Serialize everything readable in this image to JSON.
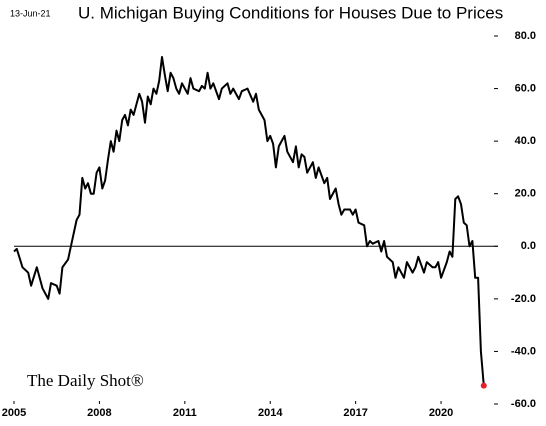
{
  "chart_data": {
    "type": "line",
    "title": "U. Michigan Buying Conditions for Houses Due to Prices",
    "date_label": "13-Jun-21",
    "watermark": "The Daily Shot®",
    "x": [
      2005.0,
      2005.1,
      2005.3,
      2005.5,
      2005.6,
      2005.8,
      2006.0,
      2006.2,
      2006.3,
      2006.5,
      2006.6,
      2006.7,
      2006.9,
      2007.0,
      2007.2,
      2007.3,
      2007.4,
      2007.5,
      2007.6,
      2007.7,
      2007.8,
      2007.9,
      2008.0,
      2008.1,
      2008.2,
      2008.3,
      2008.4,
      2008.5,
      2008.6,
      2008.7,
      2008.8,
      2008.9,
      2009.0,
      2009.1,
      2009.2,
      2009.4,
      2009.5,
      2009.6,
      2009.7,
      2009.8,
      2009.9,
      2010.0,
      2010.1,
      2010.2,
      2010.3,
      2010.4,
      2010.5,
      2010.6,
      2010.7,
      2010.8,
      2010.9,
      2011.1,
      2011.2,
      2011.3,
      2011.5,
      2011.6,
      2011.7,
      2011.8,
      2011.9,
      2012.0,
      2012.2,
      2012.3,
      2012.5,
      2012.6,
      2012.7,
      2012.9,
      2013.0,
      2013.2,
      2013.4,
      2013.5,
      2013.6,
      2013.8,
      2013.9,
      2014.0,
      2014.1,
      2014.2,
      2014.3,
      2014.4,
      2014.5,
      2014.6,
      2014.8,
      2014.9,
      2015.0,
      2015.1,
      2015.2,
      2015.3,
      2015.5,
      2015.6,
      2015.7,
      2015.9,
      2016.0,
      2016.1,
      2016.3,
      2016.4,
      2016.5,
      2016.6,
      2016.8,
      2016.9,
      2017.0,
      2017.1,
      2017.3,
      2017.4,
      2017.5,
      2017.6,
      2017.8,
      2017.9,
      2018.0,
      2018.1,
      2018.3,
      2018.4,
      2018.5,
      2018.7,
      2018.8,
      2019.0,
      2019.1,
      2019.2,
      2019.4,
      2019.5,
      2019.7,
      2019.8,
      2019.9,
      2020.0,
      2020.2,
      2020.3,
      2020.4,
      2020.5,
      2020.6,
      2020.7,
      2020.8,
      2020.9,
      2021.0,
      2021.1,
      2021.2,
      2021.3,
      2021.4,
      2021.5
    ],
    "series": [
      {
        "color": "#000000",
        "values": [
          -2,
          -1,
          -8,
          -10,
          -15,
          -8,
          -16,
          -20,
          -14,
          -15,
          -18,
          -8,
          -5,
          0,
          10,
          12,
          26,
          22,
          24,
          20,
          20,
          28,
          30,
          22,
          25,
          33,
          40,
          36,
          44,
          40,
          48,
          50,
          46,
          52,
          50,
          58,
          55,
          47,
          57,
          54,
          60,
          58,
          63,
          72,
          65,
          59,
          66,
          64,
          60,
          58,
          62,
          58,
          64,
          60,
          59,
          61,
          60,
          66,
          60,
          62,
          56,
          60,
          62,
          58,
          60,
          56,
          59,
          60,
          55,
          58,
          52,
          48,
          40,
          42,
          39,
          30,
          38,
          40,
          42,
          36,
          32,
          38,
          30,
          35,
          34,
          28,
          32,
          26,
          30,
          24,
          26,
          18,
          22,
          16,
          12,
          14,
          14,
          12,
          14,
          9,
          8,
          0,
          2,
          1,
          2,
          -2,
          2,
          -4,
          -6,
          -12,
          -8,
          -12,
          -6,
          -10,
          -8,
          -4,
          -10,
          -6,
          -8,
          -8,
          -6,
          -12,
          -6,
          -2,
          -4,
          18,
          19,
          16,
          9,
          8,
          0,
          2,
          -12,
          -12,
          -40,
          -53
        ]
      }
    ],
    "last_point_color": "#e8202a",
    "xlim": [
      2005,
      2022
    ],
    "xticks": [
      2005,
      2008,
      2011,
      2014,
      2017,
      2020
    ],
    "ylim": [
      -60,
      80
    ],
    "yticks": [
      {
        "value": -60,
        "label": "-60.0"
      },
      {
        "value": -40,
        "label": "-40.0"
      },
      {
        "value": -20,
        "label": "-20.0"
      },
      {
        "value": 0,
        "label": "0.0"
      },
      {
        "value": 20,
        "label": "20.0"
      },
      {
        "value": 40,
        "label": "40.0"
      },
      {
        "value": 60,
        "label": "60.0"
      },
      {
        "value": 80,
        "label": "80.0"
      }
    ],
    "grid": false
  }
}
